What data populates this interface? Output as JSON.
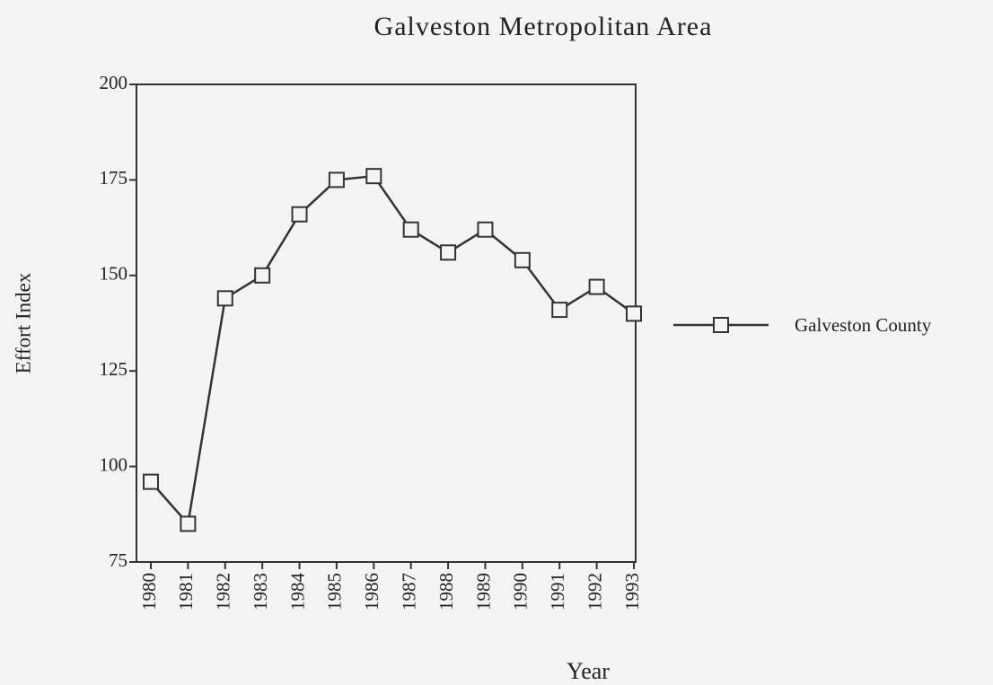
{
  "chart_data": {
    "type": "line",
    "title": "Galveston Metropolitan Area",
    "xlabel": "Year",
    "ylabel": "Effort Index",
    "categories": [
      "1980",
      "1981",
      "1982",
      "1983",
      "1984",
      "1985",
      "1986",
      "1987",
      "1988",
      "1989",
      "1990",
      "1991",
      "1992",
      "1993"
    ],
    "series": [
      {
        "name": "Galveston County",
        "color": "#333333",
        "values": [
          96,
          85,
          144,
          150,
          166,
          175,
          176,
          162,
          156,
          162,
          154,
          141,
          147,
          140
        ]
      }
    ],
    "ylim": [
      75,
      200
    ],
    "yticks": [
      75,
      100,
      125,
      150,
      175,
      200
    ],
    "grid": false,
    "legend": "right"
  }
}
